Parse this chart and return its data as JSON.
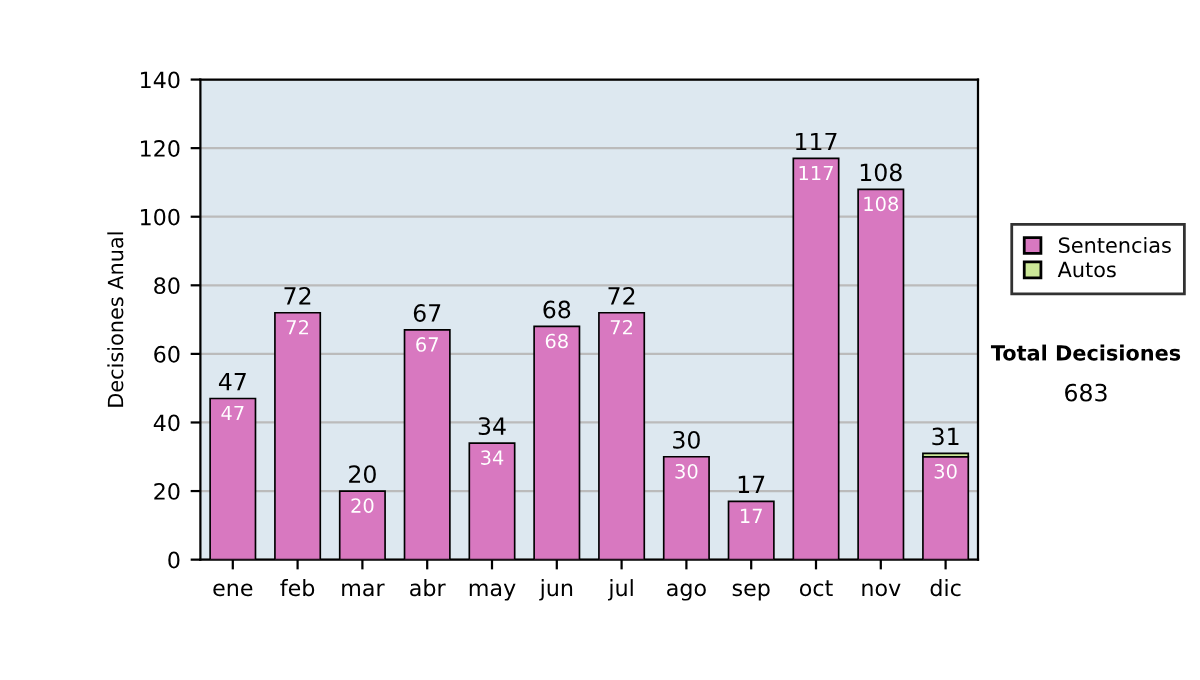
{
  "chart_data": {
    "type": "bar",
    "stacked": true,
    "ylabel": "Decisiones Anual",
    "categories": [
      "ene",
      "feb",
      "mar",
      "abr",
      "may",
      "jun",
      "jul",
      "ago",
      "sep",
      "oct",
      "nov",
      "dic"
    ],
    "series": [
      {
        "name": "Sentencias",
        "color": "#d878c0",
        "values": [
          47,
          72,
          20,
          67,
          34,
          68,
          72,
          30,
          17,
          117,
          108,
          30
        ],
        "value_labels": [
          "47",
          "72",
          "20",
          "67",
          "34",
          "68",
          "72",
          "30",
          "17",
          "117",
          "108",
          "30"
        ]
      },
      {
        "name": "Autos",
        "color": "#cce898",
        "values": [
          null,
          null,
          null,
          null,
          null,
          null,
          null,
          null,
          null,
          null,
          null,
          1
        ]
      }
    ],
    "totals": [
      "47",
      "72",
      "20",
      "67",
      "34",
      "68",
      "72",
      "30",
      "17",
      "117",
      "108",
      "31"
    ],
    "ylim": [
      0,
      140
    ],
    "yticks": [
      0,
      20,
      40,
      60,
      80,
      100,
      120,
      140
    ],
    "grid": "y",
    "legend": "right",
    "annotations": [
      "Total Decisiones",
      "683"
    ]
  }
}
